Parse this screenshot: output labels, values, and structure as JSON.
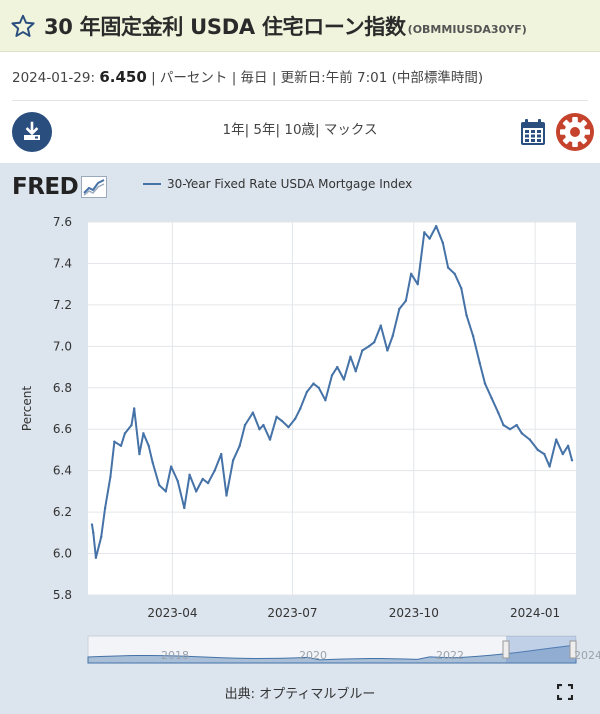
{
  "header": {
    "title": "30 年固定金利 USDA 住宅ローン指数",
    "series_code": "(OBMMIUSDA30YF)"
  },
  "info": {
    "date": "2024-01-29:",
    "value": "6.450",
    "units": "| パーセント | 毎日 | 更新日:午前 7:01 (中部標準時間)"
  },
  "range_links": [
    "1年",
    "5年",
    "10歳",
    "マックス"
  ],
  "logo_text": "FRED",
  "source": "出典: オプティマルブルー",
  "colors": {
    "header_bg": "#f1f4dc",
    "accent_blue": "#2a4f7e",
    "gear_red": "#c5432c",
    "panel_bg": "#dce4ed",
    "series": "#4572a7"
  },
  "chart_data": {
    "type": "line",
    "legend": "30-Year Fixed Rate USDA Mortgage Index",
    "ylabel": "Percent",
    "xlabel": "",
    "ylim": [
      5.8,
      7.6
    ],
    "yticks": [
      "5.8",
      "6.0",
      "6.2",
      "6.4",
      "6.6",
      "6.8",
      "7.0",
      "7.2",
      "7.4",
      "7.6"
    ],
    "xticks": [
      {
        "date": "2023-04-01",
        "label": "2023-04"
      },
      {
        "date": "2023-07-01",
        "label": "2023-07"
      },
      {
        "date": "2023-10-01",
        "label": "2023-10"
      },
      {
        "date": "2024-01-01",
        "label": "2024-01"
      }
    ],
    "xrange": [
      "2023-01-27",
      "2024-02-01"
    ],
    "grid": true,
    "series": [
      {
        "name": "30-Year Fixed Rate USDA Mortgage Index",
        "x": [
          "2023-01-30",
          "2023-01-31",
          "2023-02-02",
          "2023-02-06",
          "2023-02-09",
          "2023-02-13",
          "2023-02-16",
          "2023-02-21",
          "2023-02-24",
          "2023-03-01",
          "2023-03-03",
          "2023-03-07",
          "2023-03-10",
          "2023-03-14",
          "2023-03-17",
          "2023-03-22",
          "2023-03-27",
          "2023-03-31",
          "2023-04-05",
          "2023-04-10",
          "2023-04-14",
          "2023-04-19",
          "2023-04-24",
          "2023-04-28",
          "2023-05-03",
          "2023-05-08",
          "2023-05-12",
          "2023-05-17",
          "2023-05-22",
          "2023-05-26",
          "2023-06-01",
          "2023-06-06",
          "2023-06-09",
          "2023-06-14",
          "2023-06-19",
          "2023-06-23",
          "2023-06-28",
          "2023-07-03",
          "2023-07-07",
          "2023-07-12",
          "2023-07-17",
          "2023-07-21",
          "2023-07-26",
          "2023-07-31",
          "2023-08-04",
          "2023-08-09",
          "2023-08-14",
          "2023-08-18",
          "2023-08-23",
          "2023-08-28",
          "2023-09-01",
          "2023-09-06",
          "2023-09-11",
          "2023-09-15",
          "2023-09-20",
          "2023-09-25",
          "2023-09-29",
          "2023-10-04",
          "2023-10-09",
          "2023-10-13",
          "2023-10-18",
          "2023-10-23",
          "2023-10-27",
          "2023-11-01",
          "2023-11-06",
          "2023-11-10",
          "2023-11-15",
          "2023-11-20",
          "2023-11-24",
          "2023-11-29",
          "2023-12-04",
          "2023-12-08",
          "2023-12-13",
          "2023-12-18",
          "2023-12-22",
          "2023-12-28",
          "2024-01-03",
          "2024-01-08",
          "2024-01-12",
          "2024-01-17",
          "2024-01-22",
          "2024-01-26",
          "2024-01-29"
        ],
        "values": [
          6.14,
          6.1,
          5.98,
          6.08,
          6.22,
          6.37,
          6.54,
          6.52,
          6.58,
          6.62,
          6.7,
          6.48,
          6.58,
          6.52,
          6.44,
          6.33,
          6.3,
          6.42,
          6.35,
          6.22,
          6.38,
          6.3,
          6.36,
          6.34,
          6.4,
          6.48,
          6.28,
          6.45,
          6.52,
          6.62,
          6.68,
          6.6,
          6.62,
          6.55,
          6.66,
          6.64,
          6.61,
          6.65,
          6.7,
          6.78,
          6.82,
          6.8,
          6.74,
          6.86,
          6.9,
          6.84,
          6.95,
          6.88,
          6.98,
          7.0,
          7.02,
          7.1,
          6.98,
          7.05,
          7.18,
          7.22,
          7.35,
          7.3,
          7.55,
          7.52,
          7.58,
          7.5,
          7.38,
          7.35,
          7.28,
          7.15,
          7.05,
          6.92,
          6.82,
          6.75,
          6.68,
          6.62,
          6.6,
          6.62,
          6.58,
          6.55,
          6.5,
          6.48,
          6.42,
          6.55,
          6.48,
          6.52,
          6.45
        ]
      }
    ],
    "navigator": {
      "labels": [
        "2018",
        "2020",
        "2022",
        "2024"
      ]
    }
  }
}
